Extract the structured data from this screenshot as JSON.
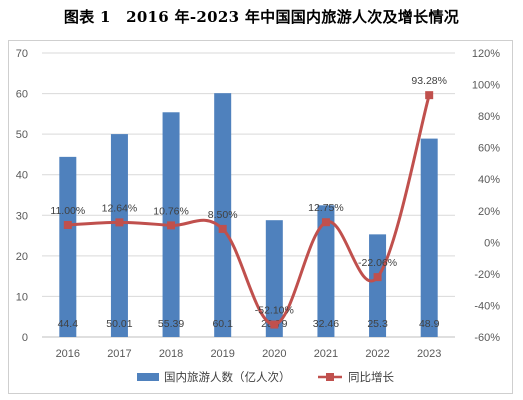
{
  "title": "图表 1　2016 年-2023 年中国国内旅游人次及增长情况",
  "chart_data": {
    "type": "bar",
    "categories": [
      "2016",
      "2017",
      "2018",
      "2019",
      "2020",
      "2021",
      "2022",
      "2023"
    ],
    "series": [
      {
        "name": "国内旅游人数（亿人次）",
        "type": "bar",
        "axis": "left",
        "color": "#4f81bd",
        "values": [
          44.4,
          50.01,
          55.39,
          60.1,
          28.79,
          32.46,
          25.3,
          48.9
        ],
        "labels": [
          "44.4",
          "50.01",
          "55.39",
          "60.1",
          "28.79",
          "32.46",
          "25.3",
          "48.9"
        ]
      },
      {
        "name": "同比增长",
        "type": "line",
        "axis": "right",
        "color": "#c0504d",
        "values": [
          11.0,
          12.64,
          10.76,
          8.5,
          -52.1,
          12.75,
          -22.06,
          93.28
        ],
        "labels": [
          "11.00%",
          "12.64%",
          "10.76%",
          "8.50%",
          "-52.10%",
          "12.75%",
          "-22.06%",
          "93.28%"
        ]
      }
    ],
    "ylim_left": [
      0,
      70
    ],
    "yticks_left": [
      "0",
      "10",
      "20",
      "30",
      "40",
      "50",
      "60",
      "70"
    ],
    "ylim_right": [
      -60,
      120
    ],
    "yticks_right": [
      "-60%",
      "-40%",
      "-20%",
      "0%",
      "20%",
      "40%",
      "60%",
      "80%",
      "100%",
      "120%"
    ],
    "grid": true,
    "legend_position": "bottom",
    "line_smooth": true
  }
}
